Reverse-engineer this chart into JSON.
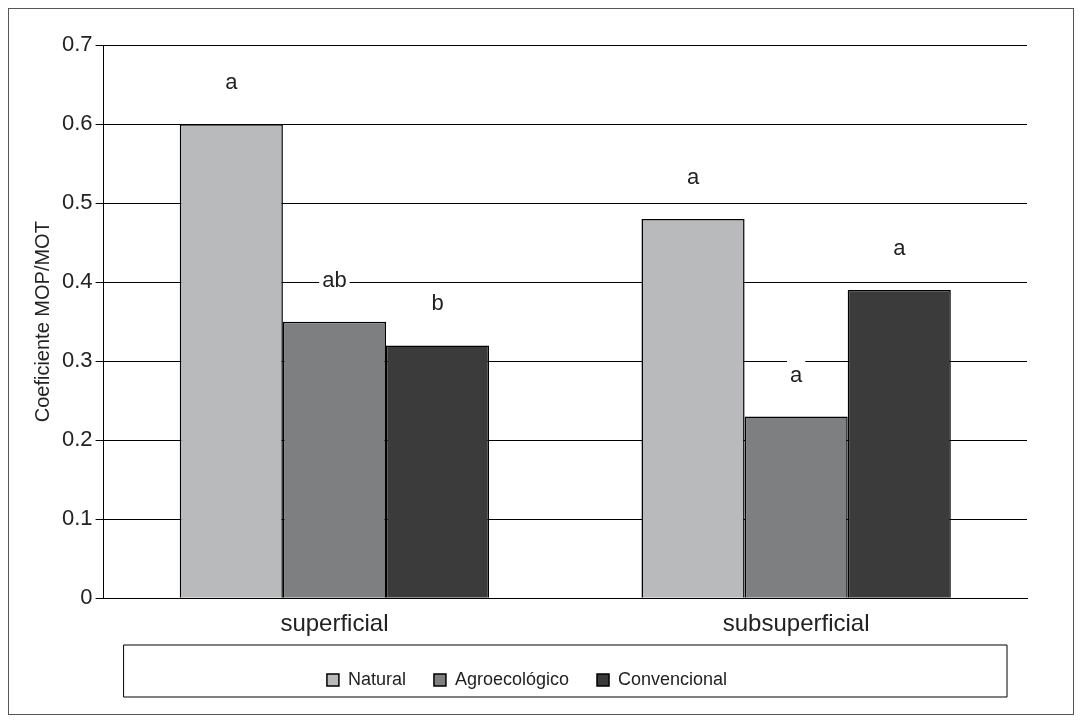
{
  "chart_data": {
    "type": "bar",
    "ylabel": "Coeficiente MOP/MOT",
    "categories": [
      "superficial",
      "subsuperficial"
    ],
    "series": [
      {
        "name": "Natural",
        "color": "#b9babc",
        "values": [
          0.6,
          0.48
        ],
        "value_labels": [
          "a",
          "a"
        ]
      },
      {
        "name": "Agroecológico",
        "color": "#7e7f81",
        "values": [
          0.35,
          0.23
        ],
        "value_labels": [
          "ab",
          "a"
        ]
      },
      {
        "name": "Convencional",
        "color": "#3b3b3b",
        "values": [
          0.32,
          0.39
        ],
        "value_labels": [
          "b",
          "a"
        ]
      }
    ],
    "ylim": [
      0,
      0.7
    ],
    "yticks": [
      0,
      0.1,
      0.2,
      0.3,
      0.4,
      0.5,
      0.6,
      0.7
    ],
    "grid": "y",
    "legend": "bottom"
  }
}
